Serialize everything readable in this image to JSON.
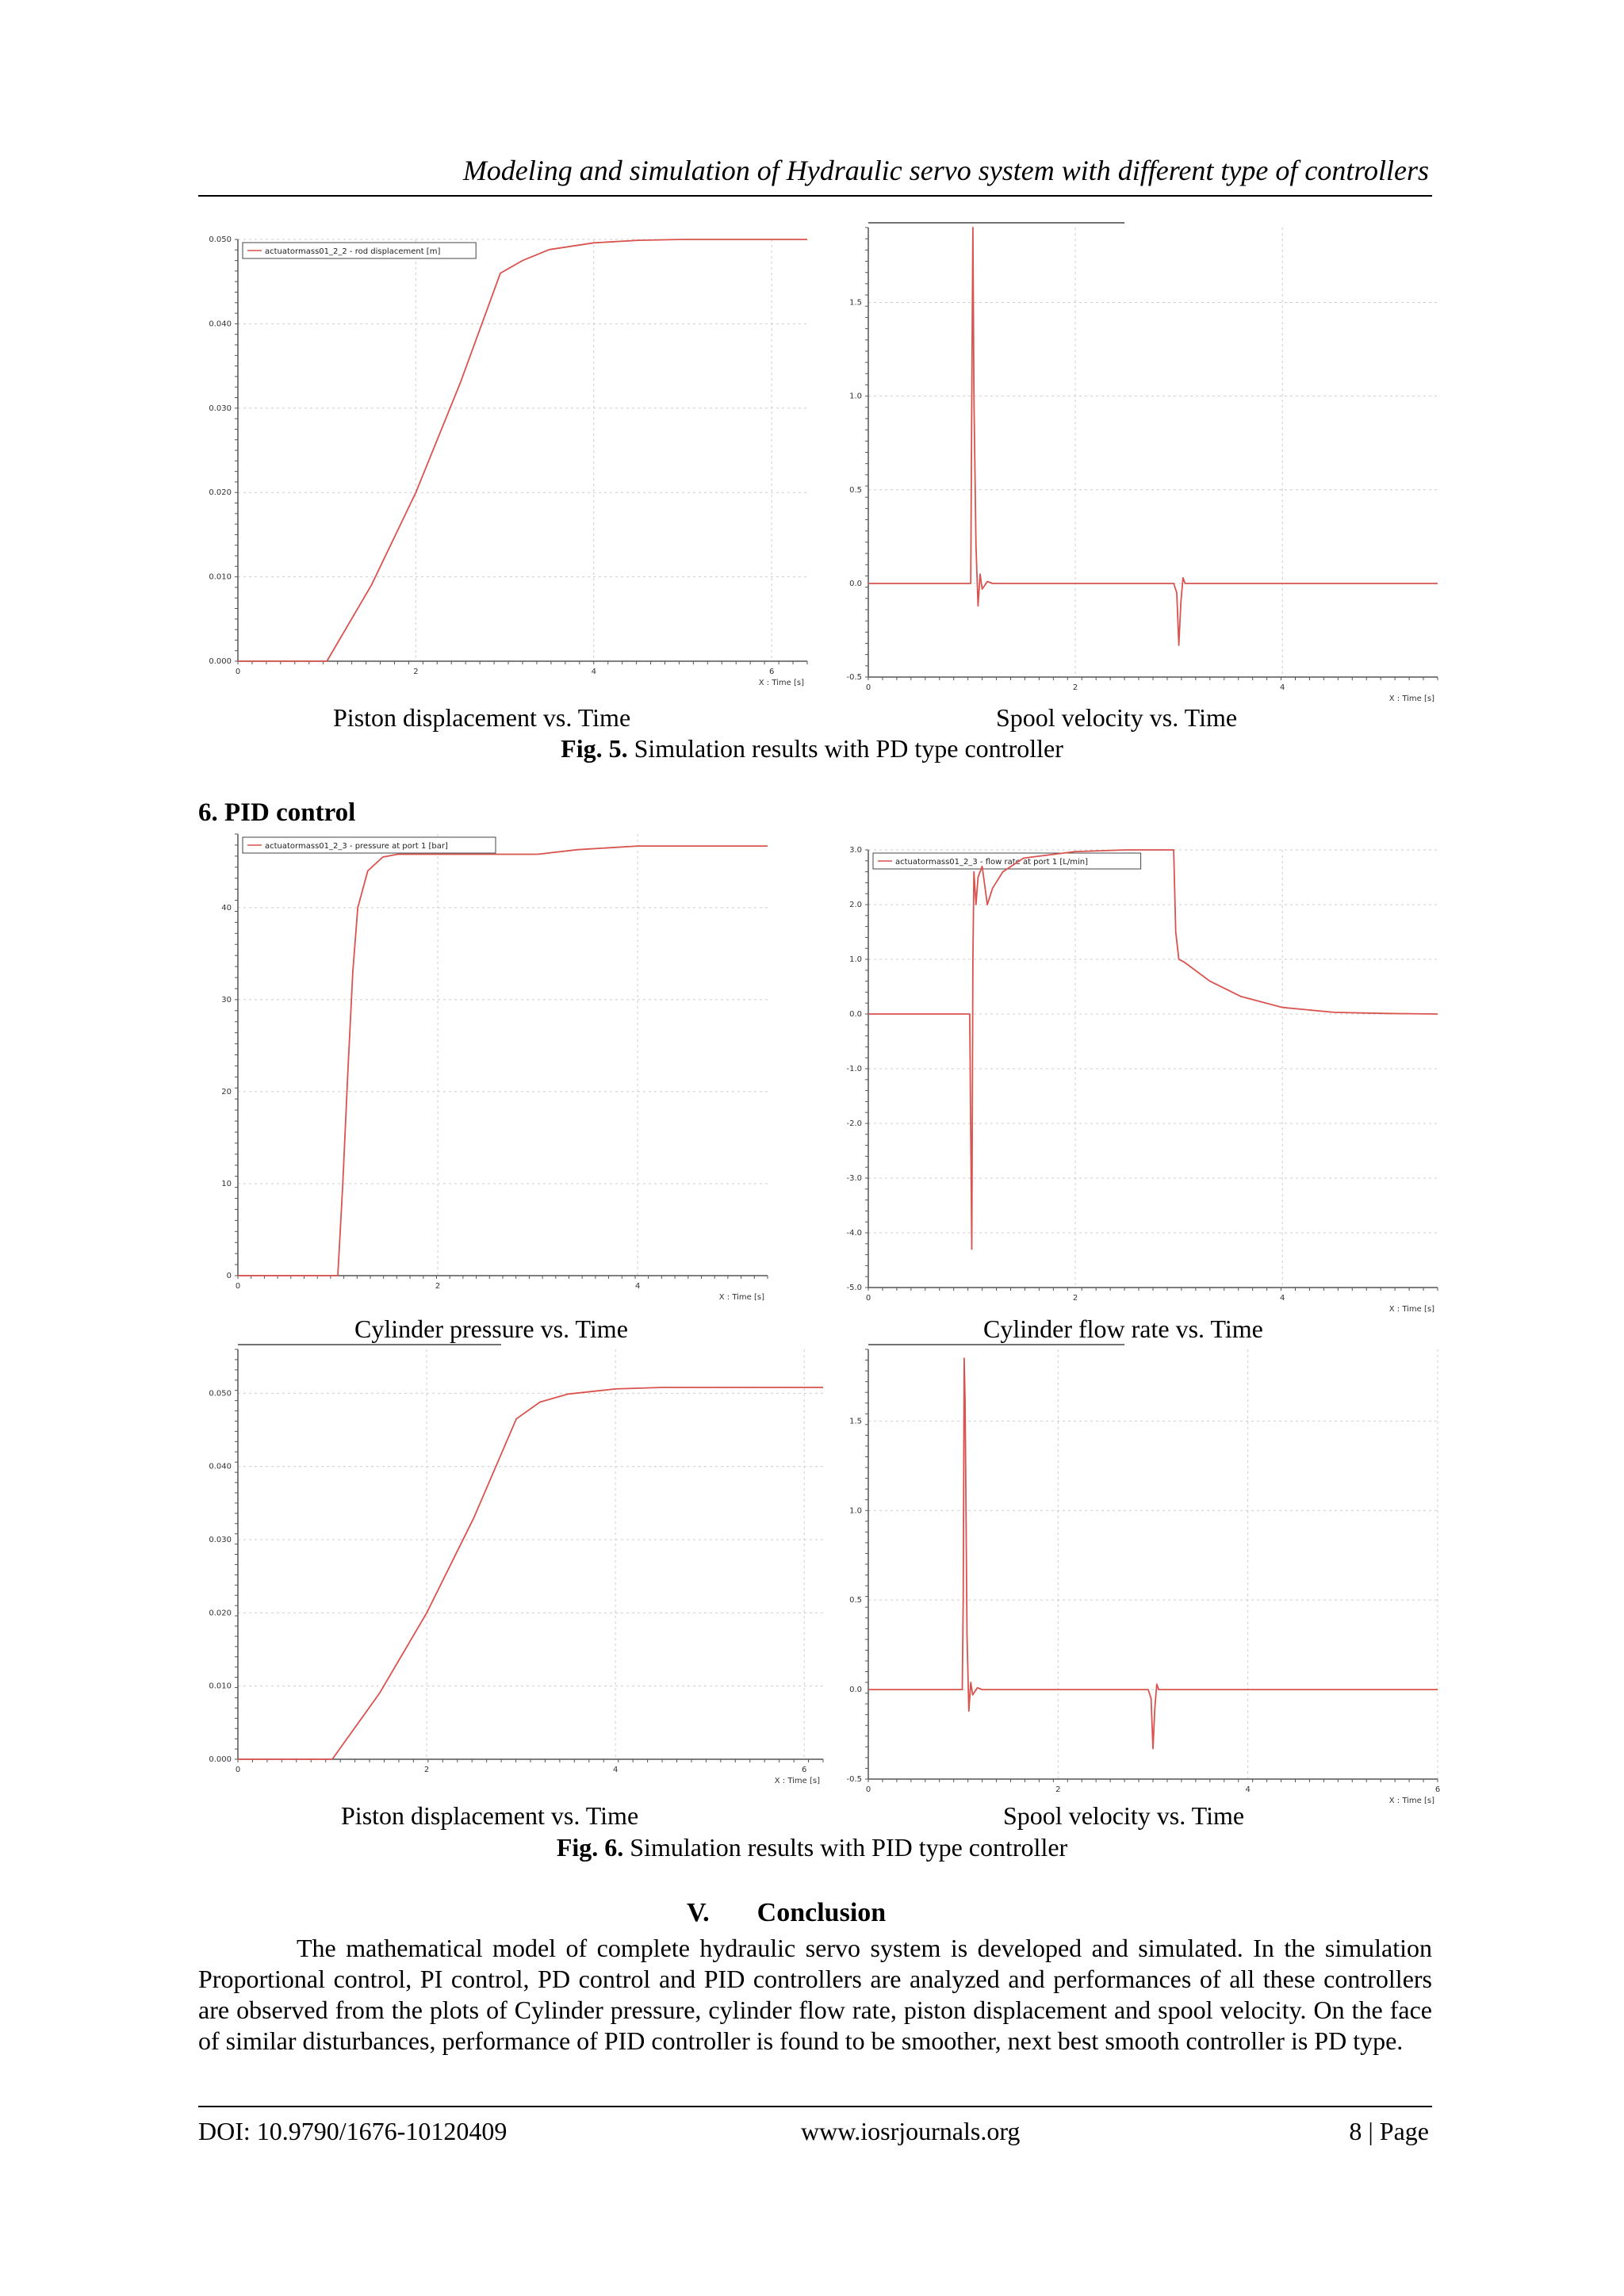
{
  "header": {
    "running_title": "Modeling and simulation of Hydraulic servo system with different type of controllers"
  },
  "fig5": {
    "left_caption": "Piston displacement vs. Time",
    "right_caption": "Spool velocity vs. Time",
    "label": "Fig. 5.",
    "text": " Simulation results with PD type controller"
  },
  "section6": {
    "title": "6. PID control"
  },
  "fig6": {
    "top_left_caption": "Cylinder pressure vs. Time",
    "top_right_caption": "Cylinder flow rate vs. Time",
    "bottom_left_caption": "Piston displacement vs. Time",
    "bottom_right_caption": "Spool velocity vs. Time",
    "label": "Fig. 6.",
    "text": " Simulation results with PID type controller"
  },
  "conclusion": {
    "number": "V.",
    "title": "Conclusion",
    "body": "The mathematical model of complete hydraulic servo system is developed and simulated. In the simulation Proportional control, PI control, PD control and PID controllers are analyzed and performances of all these controllers are observed from the plots of Cylinder pressure, cylinder flow rate, piston displacement and spool velocity. On the face of similar disturbances, performance of PID controller is found to be smoother, next best smooth controller is PD type."
  },
  "footer": {
    "doi": "DOI: 10.9790/1676-10120409",
    "site": "www.iosrjournals.org",
    "page": "8 | Page"
  },
  "colors": {
    "series": "#d9534f",
    "grid": "#cccccc",
    "axis": "#555555"
  },
  "chart_data": [
    {
      "id": "fig5a",
      "type": "line",
      "legend": "actuatormass01_2_2 - rod displacement [m]",
      "xlabel": "X : Time [s]",
      "ylabel": "",
      "xlim": [
        0,
        6.4
      ],
      "ylim": [
        0,
        0.05
      ],
      "xticks": [
        0,
        2,
        4,
        6
      ],
      "xtick_labels": [
        "0",
        "2",
        "4",
        "6"
      ],
      "yticks": [
        0,
        0.01,
        0.02,
        0.03,
        0.04,
        0.05
      ],
      "ytick_labels": [
        "0.000",
        "0.010",
        "0.020",
        "0.030",
        "0.040",
        "0.050"
      ],
      "series": [
        {
          "x": [
            0,
            1.0,
            1.5,
            2.0,
            2.5,
            2.95,
            3.2,
            3.5,
            4.0,
            4.5,
            5.0,
            6.4
          ],
          "y": [
            0,
            0,
            0.009,
            0.02,
            0.033,
            0.046,
            0.0475,
            0.0488,
            0.0496,
            0.0499,
            0.05,
            0.05
          ]
        }
      ]
    },
    {
      "id": "fig5b",
      "type": "line",
      "legend": "",
      "xlabel": "X : Time [s]",
      "ylabel": "",
      "xlim": [
        0,
        5.5
      ],
      "ylim": [
        -0.5,
        1.9
      ],
      "xticks": [
        0,
        2,
        4
      ],
      "xtick_labels": [
        "0",
        "2",
        "4"
      ],
      "yticks": [
        -0.5,
        0,
        0.5,
        1.0,
        1.5
      ],
      "ytick_labels": [
        "-0.5",
        "0.0",
        "0.5",
        "1.0",
        "1.5"
      ],
      "series": [
        {
          "x": [
            0,
            0.99,
            1.0,
            1.01,
            1.02,
            1.04,
            1.06,
            1.08,
            1.1,
            1.15,
            1.2,
            2.95,
            2.98,
            3.0,
            3.02,
            3.04,
            3.06,
            3.1,
            5.5
          ],
          "y": [
            0,
            0,
            1.0,
            1.95,
            1.0,
            0.2,
            -0.12,
            0.05,
            -0.03,
            0.01,
            0,
            0,
            -0.05,
            -0.33,
            -0.1,
            0.03,
            0,
            0,
            0
          ]
        }
      ]
    },
    {
      "id": "fig6a",
      "type": "line",
      "legend": "actuatormass01_2_3 - pressure at port 1 [bar]",
      "xlabel": "X : Time [s]",
      "ylabel": "",
      "xlim": [
        0,
        5.3
      ],
      "ylim": [
        0,
        48
      ],
      "xticks": [
        0,
        2,
        4
      ],
      "xtick_labels": [
        "0",
        "2",
        "4"
      ],
      "yticks": [
        0,
        10,
        20,
        30,
        40
      ],
      "ytick_labels": [
        "0",
        "10",
        "20",
        "30",
        "40"
      ],
      "series": [
        {
          "x": [
            0,
            1.0,
            1.05,
            1.1,
            1.15,
            1.2,
            1.3,
            1.45,
            1.6,
            2.0,
            2.5,
            3.0,
            3.4,
            4.0,
            5.3
          ],
          "y": [
            0,
            0,
            10,
            22,
            33,
            40,
            44,
            45.5,
            45.8,
            45.8,
            45.8,
            45.8,
            46.3,
            46.7,
            46.7
          ]
        }
      ]
    },
    {
      "id": "fig6b",
      "type": "line",
      "legend": "actuatormass01_2_3 - flow rate at port 1 [L/min]",
      "xlabel": "X : Time [s]",
      "ylabel": "",
      "xlim": [
        0,
        5.5
      ],
      "ylim": [
        -5.0,
        3.0
      ],
      "xticks": [
        0,
        2,
        4
      ],
      "xtick_labels": [
        "0",
        "2",
        "4"
      ],
      "yticks": [
        -5,
        -4,
        -3,
        -2,
        -1,
        0,
        1,
        2,
        3
      ],
      "ytick_labels": [
        "-5.0",
        "-4.0",
        "-3.0",
        "-2.0",
        "-1.0",
        "0.0",
        "1.0",
        "2.0",
        "3.0"
      ],
      "series": [
        {
          "x": [
            0,
            0.98,
            0.99,
            1.0,
            1.01,
            1.02,
            1.04,
            1.06,
            1.1,
            1.15,
            1.2,
            1.3,
            1.5,
            2.0,
            2.5,
            2.95,
            2.97,
            3.0,
            3.05,
            3.3,
            3.6,
            4.0,
            4.5,
            5.0,
            5.5
          ],
          "y": [
            0,
            0,
            -2.2,
            -4.3,
            1.0,
            2.6,
            2.0,
            2.5,
            2.7,
            2.0,
            2.3,
            2.6,
            2.85,
            2.97,
            3.0,
            3.0,
            1.5,
            1.0,
            0.95,
            0.6,
            0.32,
            0.12,
            0.03,
            0.01,
            0.0
          ]
        }
      ]
    },
    {
      "id": "fig6c",
      "type": "line",
      "legend": "",
      "xlabel": "X : Time [s]",
      "ylabel": "",
      "xlim": [
        0,
        6.2
      ],
      "ylim": [
        0,
        0.056
      ],
      "xticks": [
        0,
        2,
        4,
        6
      ],
      "xtick_labels": [
        "0",
        "2",
        "4",
        "6"
      ],
      "yticks": [
        0,
        0.01,
        0.02,
        0.03,
        0.04,
        0.05
      ],
      "ytick_labels": [
        "0.000",
        "0.010",
        "0.020",
        "0.030",
        "0.040",
        "0.050"
      ],
      "series": [
        {
          "x": [
            0,
            1.0,
            1.5,
            2.0,
            2.5,
            2.95,
            3.2,
            3.5,
            4.0,
            4.5,
            5.0,
            6.2
          ],
          "y": [
            0,
            0,
            0.009,
            0.02,
            0.033,
            0.0465,
            0.0488,
            0.0499,
            0.0506,
            0.0508,
            0.0508,
            0.0508
          ]
        }
      ]
    },
    {
      "id": "fig6d",
      "type": "line",
      "legend": "",
      "xlabel": "X : Time [s]",
      "ylabel": "",
      "xlim": [
        0,
        6.0
      ],
      "ylim": [
        -0.5,
        1.9
      ],
      "xticks": [
        0,
        2,
        4,
        6
      ],
      "xtick_labels": [
        "0",
        "2",
        "4",
        "6"
      ],
      "yticks": [
        -0.5,
        0,
        0.5,
        1.0,
        1.5
      ],
      "ytick_labels": [
        "-0.5",
        "0.0",
        "0.5",
        "1.0",
        "1.5"
      ],
      "series": [
        {
          "x": [
            0,
            0.99,
            1.0,
            1.01,
            1.02,
            1.04,
            1.06,
            1.08,
            1.1,
            1.15,
            1.2,
            2.95,
            2.98,
            3.0,
            3.02,
            3.04,
            3.06,
            3.1,
            6.0
          ],
          "y": [
            0,
            0,
            0.5,
            1.85,
            1.6,
            0.3,
            -0.12,
            0.04,
            -0.03,
            0.01,
            0,
            0,
            -0.05,
            -0.33,
            -0.1,
            0.03,
            0,
            0,
            0
          ]
        }
      ]
    }
  ]
}
